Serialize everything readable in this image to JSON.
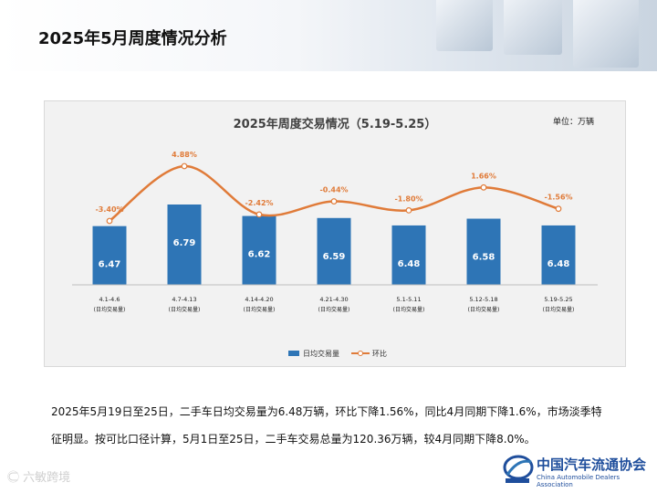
{
  "slide": {
    "title": "2025年5月周度情况分析"
  },
  "chart_data": {
    "type": "bar+line",
    "title": "2025年周度交易情况（5.19-5.25）",
    "unit_label": "单位：万辆",
    "categories": [
      [
        "4.1-4.6",
        "(日均交易量)"
      ],
      [
        "4.7-4.13",
        "(日均交易量)"
      ],
      [
        "4.14-4.20",
        "(日均交易量)"
      ],
      [
        "4.21-4.30",
        "(日均交易量)"
      ],
      [
        "5.1-5.11",
        "(日均交易量)"
      ],
      [
        "5.12-5.18",
        "(日均交易量)"
      ],
      [
        "5.19-5.25",
        "(日均交易量)"
      ]
    ],
    "series": [
      {
        "name": "日均交易量",
        "type": "bar",
        "values": [
          6.47,
          6.79,
          6.62,
          6.59,
          6.48,
          6.58,
          6.48
        ],
        "labels": [
          "6.47",
          "6.79",
          "6.62",
          "6.59",
          "6.48",
          "6.58",
          "6.48"
        ],
        "color": "#2e75b6"
      },
      {
        "name": "环比",
        "type": "line",
        "values": [
          -3.4,
          4.88,
          -2.42,
          -0.44,
          -1.8,
          1.66,
          -1.56
        ],
        "labels": [
          "-3.40%",
          "4.88%",
          "-2.42%",
          "-0.44%",
          "-1.80%",
          "1.66%",
          "-1.56%"
        ],
        "color": "#e07b39"
      }
    ],
    "legend_position": "bottom",
    "grid": false
  },
  "body": {
    "paragraph": "2025年5月19日至25日，二手车日均交易量为6.48万辆，环比下降1.56%，同比4月同期下降1.6%，市场淡季特征明显。按可比口径计算，5月1日至25日，二手车交易总量为120.36万辆，较4月同期下降8.0%。"
  },
  "footer": {
    "watermark": "六敏跨境",
    "logo_cn": "中国汽车流通协会",
    "logo_en": "China Automobile Dealers Association"
  }
}
